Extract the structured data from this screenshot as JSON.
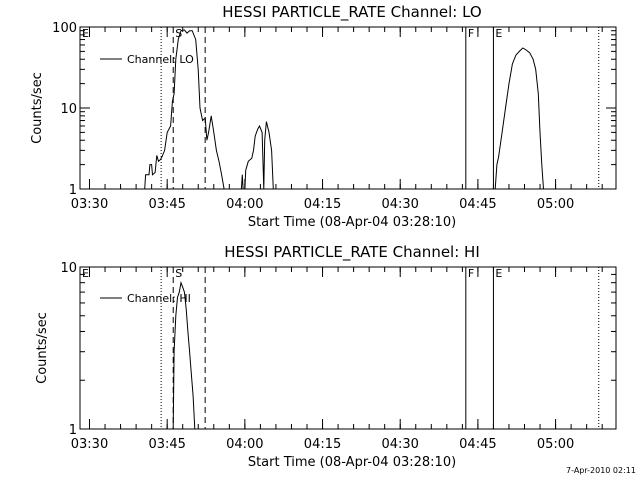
{
  "chart_data": [
    {
      "type": "line",
      "title": "HESSI PARTICLE_RATE Channel: LO",
      "xlabel": "Start Time (08-Apr-04 03:28:10)",
      "ylabel": "Counts/sec",
      "yscale": "log",
      "ylim": [
        1,
        100
      ],
      "xlim": [
        "03:28:10",
        "05:11:40"
      ],
      "xticks": [
        "03:30",
        "03:45",
        "04:00",
        "04:15",
        "04:30",
        "04:45",
        "05:00"
      ],
      "yticks": [
        "1",
        "10",
        "100"
      ],
      "legend": {
        "position": "top-left",
        "entries": [
          "Channel: LO"
        ]
      },
      "grid": false,
      "markers": [
        {
          "label": "E",
          "time": "03:28:10",
          "style": "none"
        },
        {
          "label": "",
          "time": "03:43:50",
          "style": "dotted"
        },
        {
          "label": "S",
          "time": "03:46:10",
          "style": "dashed"
        },
        {
          "label": "",
          "time": "03:52:20",
          "style": "dashed"
        },
        {
          "label": "F",
          "time": "04:42:40",
          "style": "solid"
        },
        {
          "label": "E",
          "time": "04:48:00",
          "style": "solid"
        },
        {
          "label": "",
          "time": "05:08:20",
          "style": "dotted"
        }
      ],
      "series": [
        {
          "segments": [
            [
              [
                "03:40:40",
                1.0
              ],
              [
                "03:40:50",
                1.5
              ],
              [
                "03:41:30",
                1.5
              ],
              [
                "03:41:40",
                2.0
              ],
              [
                "03:42:00",
                2.0
              ],
              [
                "03:42:10",
                1.5
              ],
              [
                "03:42:40",
                1.6
              ],
              [
                "03:43:00",
                2.6
              ],
              [
                "03:43:20",
                2.2
              ],
              [
                "03:43:40",
                2.3
              ],
              [
                "03:44:00",
                2.5
              ],
              [
                "03:44:30",
                3.0
              ],
              [
                "03:45:00",
                5.0
              ],
              [
                "03:45:40",
                6.0
              ],
              [
                "03:46:00",
                12
              ],
              [
                "03:46:20",
                15
              ],
              [
                "03:46:40",
                40
              ],
              [
                "03:47:10",
                72
              ],
              [
                "03:47:40",
                90
              ],
              [
                "03:48:20",
                92
              ],
              [
                "03:48:50",
                84
              ],
              [
                "03:49:20",
                90
              ],
              [
                "03:49:50",
                90
              ],
              [
                "03:50:30",
                70
              ],
              [
                "03:51:00",
                30
              ],
              [
                "03:51:20",
                10
              ],
              [
                "03:51:50",
                7.0
              ],
              [
                "03:52:20",
                7.5
              ],
              [
                "03:52:40",
                4.0
              ],
              [
                "03:53:00",
                5.0
              ],
              [
                "03:53:30",
                8.0
              ],
              [
                "03:54:00",
                5.0
              ],
              [
                "03:54:30",
                3.0
              ],
              [
                "03:55:00",
                2.2
              ],
              [
                "03:55:30",
                1.5
              ],
              [
                "03:56:00",
                1.0
              ]
            ],
            [
              [
                "03:59:20",
                1.0
              ],
              [
                "03:59:30",
                1.5
              ],
              [
                "03:59:40",
                1.0
              ],
              [
                "04:00:00",
                1.0
              ],
              [
                "04:00:10",
                1.7
              ],
              [
                "04:00:40",
                2.2
              ],
              [
                "04:01:20",
                2.4
              ],
              [
                "04:01:40",
                3.0
              ],
              [
                "04:02:00",
                4.5
              ],
              [
                "04:02:30",
                5.5
              ],
              [
                "04:02:50",
                6.0
              ],
              [
                "04:03:20",
                5.0
              ],
              [
                "04:03:40",
                1.0
              ],
              [
                "04:03:50",
                4.0
              ],
              [
                "04:04:10",
                6.8
              ],
              [
                "04:04:40",
                5.0
              ],
              [
                "04:05:10",
                3.0
              ],
              [
                "04:05:30",
                1.0
              ]
            ],
            [
              [
                "04:48:20",
                1.0
              ],
              [
                "04:48:40",
                2.0
              ],
              [
                "04:49:00",
                2.5
              ],
              [
                "04:49:40",
                5.0
              ],
              [
                "04:50:20",
                10
              ],
              [
                "04:51:00",
                20
              ],
              [
                "04:51:40",
                35
              ],
              [
                "04:52:20",
                45
              ],
              [
                "04:53:00",
                50
              ],
              [
                "04:53:40",
                55
              ],
              [
                "04:54:20",
                52
              ],
              [
                "04:55:00",
                48
              ],
              [
                "04:55:40",
                40
              ],
              [
                "04:56:10",
                30
              ],
              [
                "04:56:40",
                15
              ],
              [
                "04:57:00",
                5.0
              ],
              [
                "04:57:20",
                2.0
              ],
              [
                "04:57:40",
                1.0
              ]
            ]
          ]
        }
      ]
    },
    {
      "type": "line",
      "title": "HESSI PARTICLE_RATE Channel: HI",
      "xlabel": "Start Time (08-Apr-04 03:28:10)",
      "ylabel": "Counts/sec",
      "yscale": "log",
      "ylim": [
        1,
        10
      ],
      "xlim": [
        "03:28:10",
        "05:11:40"
      ],
      "xticks": [
        "03:30",
        "03:45",
        "04:00",
        "04:15",
        "04:30",
        "04:45",
        "05:00"
      ],
      "yticks": [
        "1",
        "10"
      ],
      "legend": {
        "position": "top-left",
        "entries": [
          "Channel: HI"
        ]
      },
      "grid": false,
      "markers": [
        {
          "label": "E",
          "time": "03:28:10",
          "style": "none"
        },
        {
          "label": "",
          "time": "03:43:50",
          "style": "dotted"
        },
        {
          "label": "S",
          "time": "03:46:10",
          "style": "dashed"
        },
        {
          "label": "",
          "time": "03:52:20",
          "style": "dashed"
        },
        {
          "label": "F",
          "time": "04:42:40",
          "style": "solid"
        },
        {
          "label": "E",
          "time": "04:48:00",
          "style": "solid"
        },
        {
          "label": "",
          "time": "05:08:20",
          "style": "dotted"
        }
      ],
      "series": [
        {
          "segments": [
            [
              [
                "03:46:10",
                1.0
              ],
              [
                "03:46:20",
                3.0
              ],
              [
                "03:46:40",
                5.0
              ],
              [
                "03:47:00",
                6.5
              ],
              [
                "03:47:20",
                7.0
              ],
              [
                "03:47:40",
                8.0
              ],
              [
                "03:48:00",
                7.5
              ],
              [
                "03:48:20",
                7.0
              ],
              [
                "03:48:40",
                5.5
              ],
              [
                "03:49:00",
                4.0
              ],
              [
                "03:49:20",
                3.0
              ],
              [
                "03:49:40",
                2.2
              ],
              [
                "03:50:00",
                1.6
              ],
              [
                "03:50:20",
                1.0
              ]
            ]
          ]
        }
      ]
    }
  ],
  "footer_date": "7-Apr-2010 02:11"
}
